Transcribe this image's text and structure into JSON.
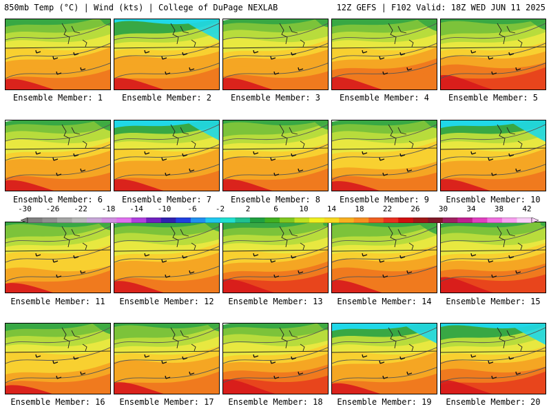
{
  "header": {
    "left_title": "850mb Temp (°C) | Wind (kts) | College of DuPage NEXLAB",
    "right_title": "12Z GEFS | F102 Valid: 18Z WED JUN 11 2025"
  },
  "colorbar": {
    "tick_labels": [
      "-30",
      "-26",
      "-22",
      "-18",
      "-14",
      "-10",
      "-6",
      "-2",
      "2",
      "6",
      "10",
      "14",
      "18",
      "22",
      "26",
      "30",
      "34",
      "38",
      "42"
    ],
    "colors": [
      "#7f7f7f",
      "#909090",
      "#a5a5a5",
      "#b8b8b8",
      "#c8a8d8",
      "#d090e0",
      "#e070f0",
      "#b040e0",
      "#7020c0",
      "#3020b0",
      "#2040e0",
      "#2090f0",
      "#20c8f0",
      "#20e0d0",
      "#20c090",
      "#20a040",
      "#40b020",
      "#80c820",
      "#c0e020",
      "#f0f020",
      "#f8d820",
      "#f8b020",
      "#f89020",
      "#f06020",
      "#e83020",
      "#d01010",
      "#a01818",
      "#801828",
      "#a02060",
      "#c02090",
      "#e040c0",
      "#f070e0",
      "#f8a0f0",
      "#f8d0f8"
    ]
  },
  "panels": [
    {
      "label": "Ensemble Member: 1",
      "warmth": 0.55,
      "cool": 0.25
    },
    {
      "label": "Ensemble Member: 2",
      "warmth": 0.6,
      "cool": 0.8
    },
    {
      "label": "Ensemble Member: 3",
      "warmth": 0.6,
      "cool": 0.3
    },
    {
      "label": "Ensemble Member: 4",
      "warmth": 0.65,
      "cool": 0.45
    },
    {
      "label": "Ensemble Member: 5",
      "warmth": 0.75,
      "cool": 0.4
    },
    {
      "label": "Ensemble Member: 6",
      "warmth": 0.55,
      "cool": 0.4
    },
    {
      "label": "Ensemble Member: 7",
      "warmth": 0.6,
      "cool": 0.75
    },
    {
      "label": "Ensemble Member: 8",
      "warmth": 0.6,
      "cool": 0.35
    },
    {
      "label": "Ensemble Member: 9",
      "warmth": 0.5,
      "cool": 0.3
    },
    {
      "label": "Ensemble Member: 10",
      "warmth": 0.6,
      "cool": 0.8
    },
    {
      "label": "Ensemble Member: 11",
      "warmth": 0.5,
      "cool": 0.3
    },
    {
      "label": "Ensemble Member: 12",
      "warmth": 0.6,
      "cool": 0.35
    },
    {
      "label": "Ensemble Member: 13",
      "warmth": 0.7,
      "cool": 0.15
    },
    {
      "label": "Ensemble Member: 14",
      "warmth": 0.65,
      "cool": 0.45
    },
    {
      "label": "Ensemble Member: 15",
      "warmth": 0.8,
      "cool": 0.15
    },
    {
      "label": "Ensemble Member: 16",
      "warmth": 0.45,
      "cool": 0.4
    },
    {
      "label": "Ensemble Member: 17",
      "warmth": 0.6,
      "cool": 0.3
    },
    {
      "label": "Ensemble Member: 18",
      "warmth": 0.75,
      "cool": 0.25
    },
    {
      "label": "Ensemble Member: 19",
      "warmth": 0.55,
      "cool": 0.75
    },
    {
      "label": "Ensemble Member: 20",
      "warmth": 0.7,
      "cool": 0.8
    }
  ]
}
